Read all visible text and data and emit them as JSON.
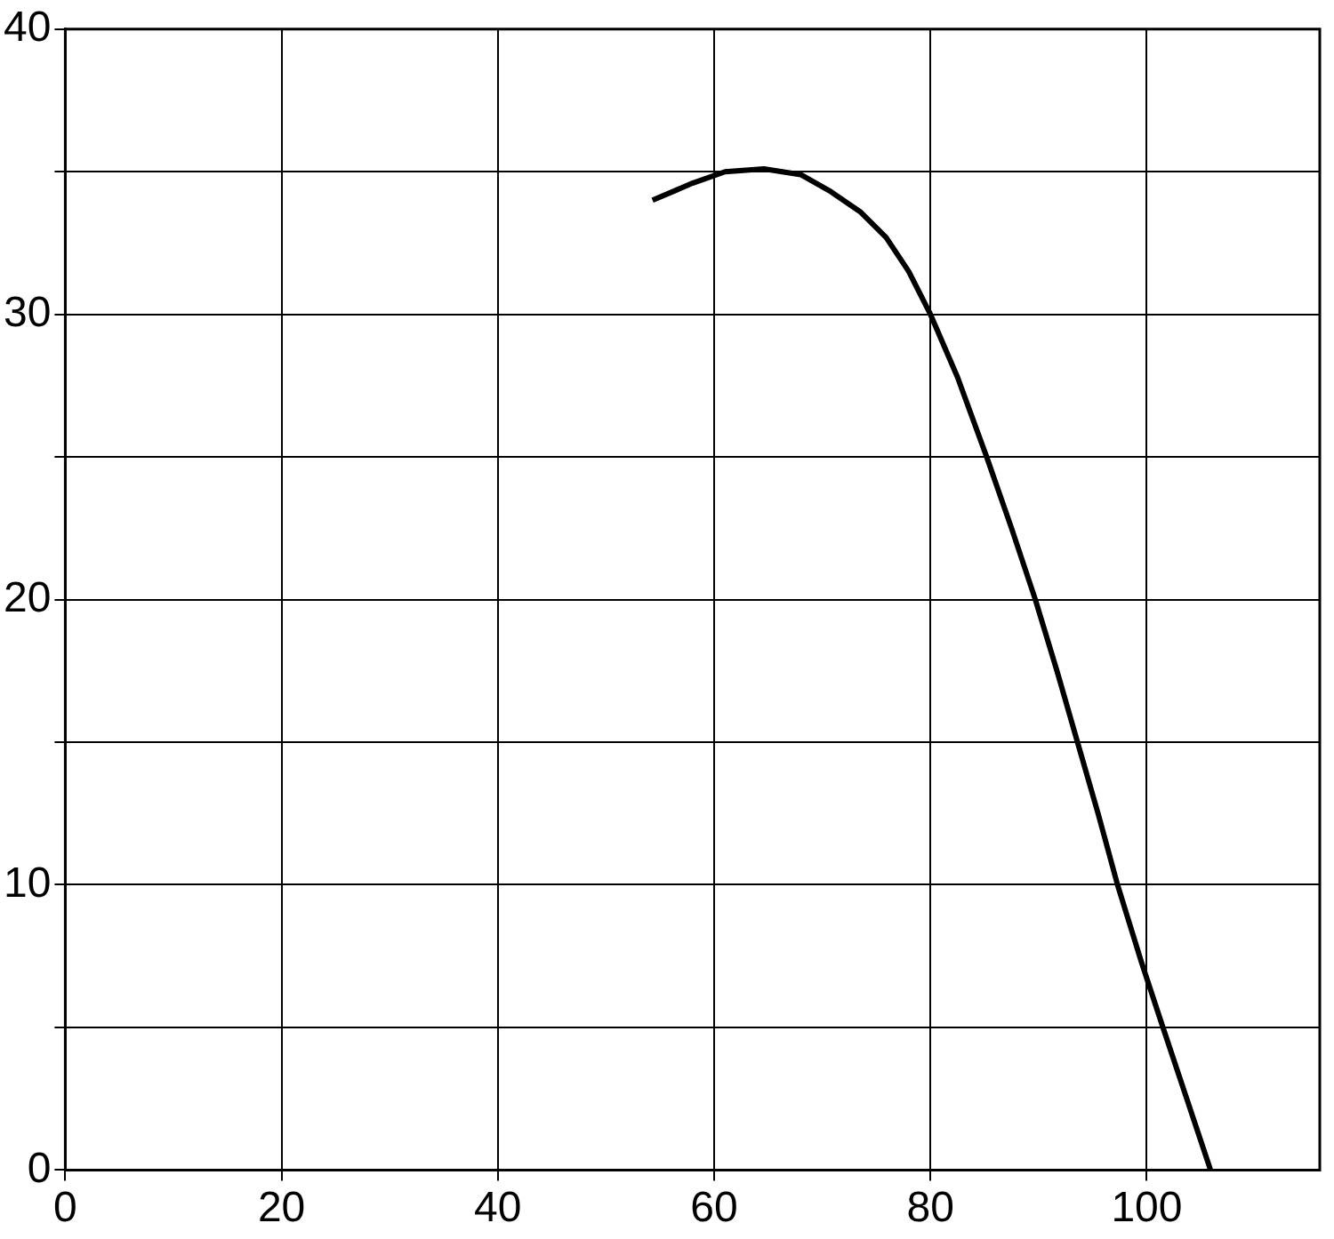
{
  "chart_data": {
    "type": "line",
    "x": [
      54.3,
      58,
      61,
      64.6,
      68,
      70.8,
      73.5,
      75.9,
      78,
      80,
      82.5,
      85.2,
      87.5,
      89.7,
      91.7,
      93.6,
      95.5,
      97.3,
      99.5,
      101.5,
      103.7,
      105.9
    ],
    "series": [
      {
        "color": "#000000",
        "values": [
          34.0,
          34.6,
          35.0,
          35.1,
          34.9,
          34.3,
          33.6,
          32.7,
          31.5,
          30,
          27.8,
          25,
          22.5,
          20,
          17.5,
          15,
          12.5,
          10,
          7.3,
          5,
          2.5,
          0
        ]
      }
    ],
    "xlim": [
      0,
      116
    ],
    "xticks": [
      0,
      20,
      40,
      60,
      80,
      100
    ],
    "ylim": [
      0,
      40
    ],
    "yticks": [
      0,
      {
        "value": 5,
        "label": null
      },
      10,
      {
        "value": 15,
        "label": null
      },
      20,
      {
        "value": 25,
        "label": null
      },
      30,
      {
        "value": 35,
        "label": null
      },
      40
    ],
    "grid": true,
    "legend": false,
    "marker": "none",
    "line_style": "solid"
  }
}
